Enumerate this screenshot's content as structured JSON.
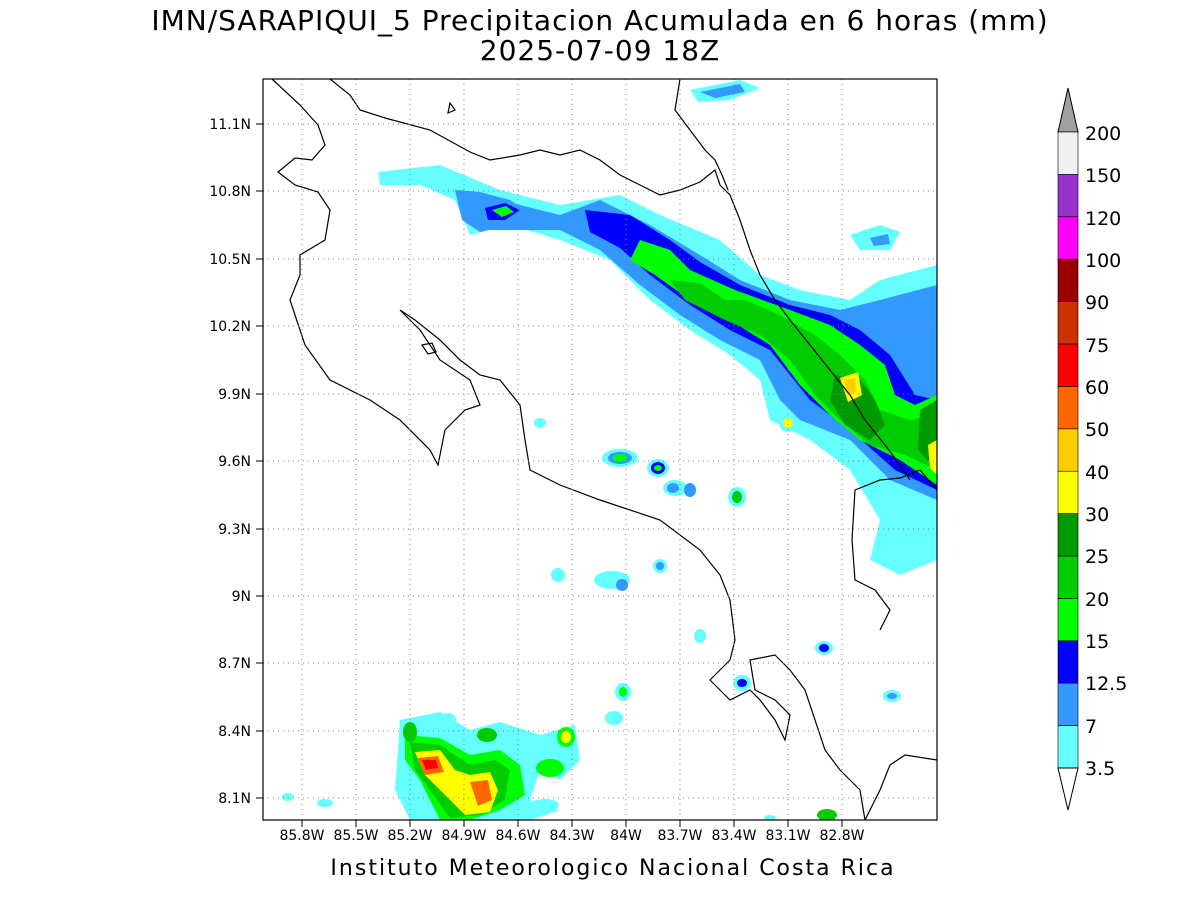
{
  "title": {
    "line1": "IMN/SARAPIQUI_5 Precipitacion Acumulada en 6 horas (mm)",
    "line2": "2025-07-09 18Z"
  },
  "footer": "Instituto Meteorologico Nacional Costa Rica",
  "map": {
    "lat_ticks": [
      "11.1N",
      "10.8N",
      "10.5N",
      "10.2N",
      "9.9N",
      "9.6N",
      "9.3N",
      "9N",
      "8.7N",
      "8.4N",
      "8.1N"
    ],
    "lon_ticks": [
      "85.8W",
      "85.5W",
      "85.2W",
      "84.9W",
      "84.6W",
      "84.3W",
      "84W",
      "83.7W",
      "83.4W",
      "83.1W",
      "82.8W"
    ],
    "grid": true,
    "grid_style": "dotted"
  },
  "colorbar": {
    "labels": [
      "3.5",
      "7",
      "12.5",
      "15",
      "20",
      "25",
      "30",
      "40",
      "50",
      "60",
      "75",
      "90",
      "100",
      "120",
      "150",
      "200"
    ],
    "colors": [
      "#66ffff",
      "#3399ff",
      "#0000ff",
      "#00ff00",
      "#00cc00",
      "#009900",
      "#ffff00",
      "#ffcc00",
      "#ff6600",
      "#ff0000",
      "#cc3300",
      "#990000",
      "#ff00ff",
      "#9933cc",
      "#f0f0f0"
    ],
    "top_arrow_color": "#a0a0a0",
    "bottom_arrow_color": "#ffffff"
  }
}
